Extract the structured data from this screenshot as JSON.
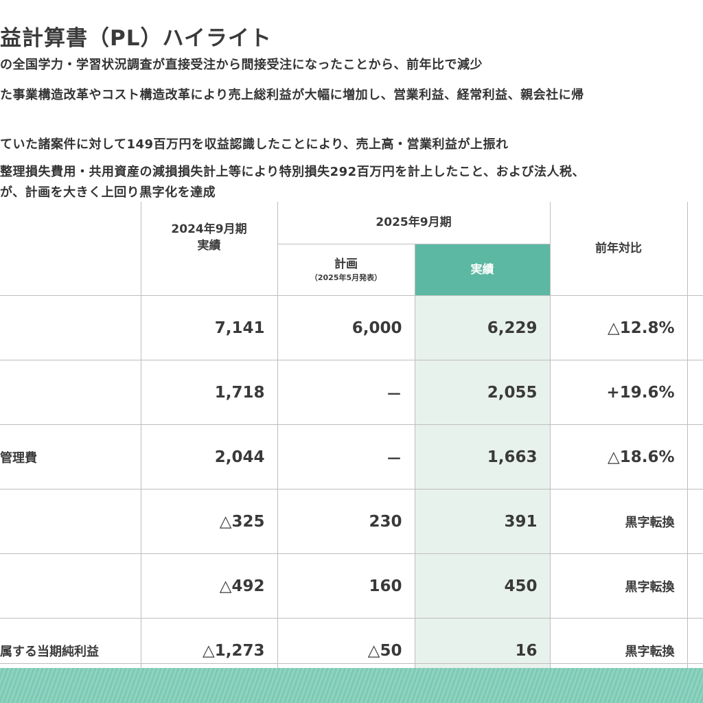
{
  "page": {
    "title": "益計算書（PL）ハイライト",
    "bullets": [
      "の全国学力・学習状況調査が直接受注から間接受注になったことから、前年比で減少",
      "た事業構造改革やコスト構造改革により売上総利益が大幅に増加し、営業利益、経常利益、親会社に帰",
      "ていた諸案件に対して149百万円を収益認識したことにより、売上高・営業利益が上振れ",
      "整理損失費用・共用資産の減損損失計上等により特別損失292百万円を計上したこと、および法人税、",
      "が、計画を大きく上回り黒字化を達成"
    ]
  },
  "table": {
    "headers": {
      "fy2024": "2024年9月期",
      "fy2024_sub": "実績",
      "fy2025": "2025年9月期",
      "plan": "計画",
      "plan_sub": "（2025年5月発表）",
      "actual": "実績",
      "yoy": "前年対比"
    },
    "rows": [
      {
        "label": "",
        "fy2024": "7,141",
        "plan": "6,000",
        "actual": "6,229",
        "yoy": "△12.8%"
      },
      {
        "label": "",
        "fy2024": "1,718",
        "plan": "－",
        "actual": "2,055",
        "yoy": "+19.6%"
      },
      {
        "label": "管理費",
        "fy2024": "2,044",
        "plan": "－",
        "actual": "1,663",
        "yoy": "△18.6%"
      },
      {
        "label": "",
        "fy2024": "△325",
        "plan": "230",
        "actual": "391",
        "yoy": "黒字転換"
      },
      {
        "label": "",
        "fy2024": "△492",
        "plan": "160",
        "actual": "450",
        "yoy": "黒字転換"
      },
      {
        "label": "属する当期純利益",
        "fy2024": "△1,273",
        "plan": "△50",
        "actual": "16",
        "yoy": "黒字転換"
      }
    ]
  },
  "colors": {
    "accent": "#5cb8a2",
    "actual_bg": "#e8f2ec",
    "footer": "#8fd3c0"
  }
}
